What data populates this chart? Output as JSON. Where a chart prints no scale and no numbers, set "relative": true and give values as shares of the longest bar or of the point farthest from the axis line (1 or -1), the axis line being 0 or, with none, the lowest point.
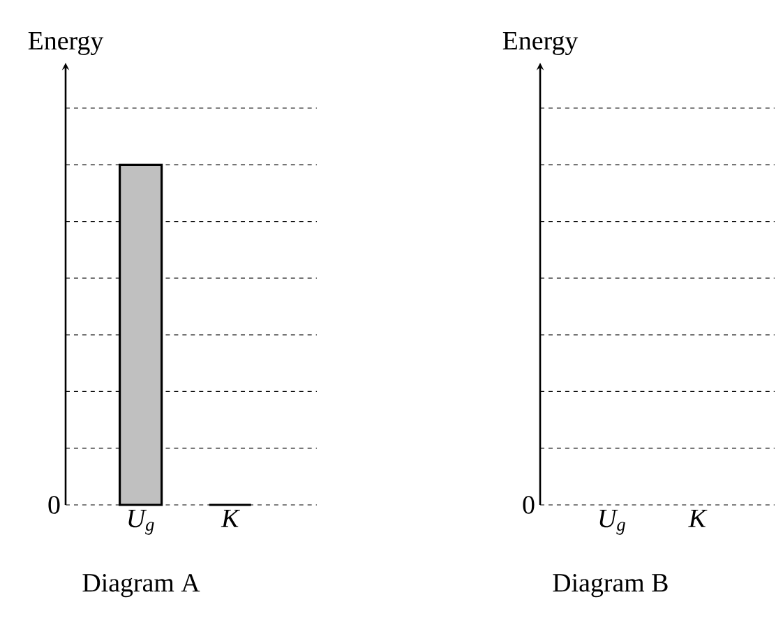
{
  "chart_data": [
    {
      "type": "bar",
      "title": "Diagram A",
      "ylabel": "Energy",
      "categories": [
        "*U*$_{g}$",
        "*K*"
      ],
      "values": [
        1,
        0
      ],
      "colors": [
        "#c0c0c0",
        "#000000"
      ],
      "relative": true,
      "grid": "y",
      "annotations": [
        "0"
      ]
    },
    {
      "type": "other",
      "title": "Diagram B",
      "ylabel": "Energy",
      "categories": [
        "*U*$_{g}$",
        "*K*"
      ],
      "annotations": [
        "0"
      ]
    }
  ]
}
